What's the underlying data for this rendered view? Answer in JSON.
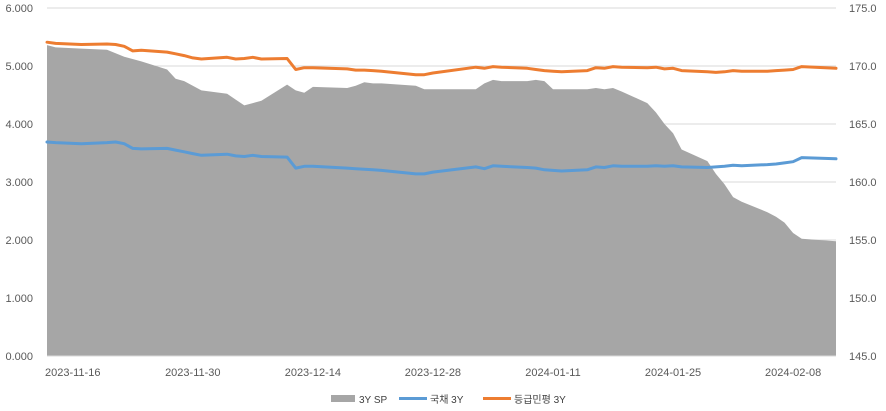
{
  "chart_data": {
    "type": "area+line",
    "title": "",
    "categories": [
      "2023-11-16",
      "2023-11-30",
      "2023-12-14",
      "2023-12-28",
      "2024-01-11",
      "2024-01-25",
      "2024-02-08"
    ],
    "x_tick_labels": [
      "2023-11-16",
      "2023-11-30",
      "2023-12-14",
      "2023-12-28",
      "2024-01-11",
      "2024-01-25",
      "2024-02-08"
    ],
    "x_range": [
      "2023-11-13",
      "2024-02-13"
    ],
    "y_left": {
      "ticks": [
        "0.000",
        "1.000",
        "2.000",
        "3.000",
        "4.000",
        "5.000",
        "6.000"
      ],
      "range": [
        0,
        6
      ]
    },
    "y_right": {
      "ticks": [
        "145.0",
        "150.0",
        "155.0",
        "160.0",
        "165.0",
        "170.0",
        "175.0"
      ],
      "range": [
        145,
        175
      ]
    },
    "grid": "horizontal",
    "legend_placement": "bottom",
    "series": [
      {
        "name": "3Y SP",
        "kind": "area",
        "axis": "right",
        "color": "#A6A6A6",
        "points": [
          [
            "2023-11-13",
            171.8
          ],
          [
            "2023-11-14",
            171.6
          ],
          [
            "2023-11-17",
            171.5
          ],
          [
            "2023-11-20",
            171.4
          ],
          [
            "2023-11-22",
            170.8
          ],
          [
            "2023-11-24",
            170.4
          ],
          [
            "2023-11-27",
            169.7
          ],
          [
            "2023-11-28",
            168.9
          ],
          [
            "2023-11-29",
            168.7
          ],
          [
            "2023-11-30",
            168.3
          ],
          [
            "2023-12-01",
            167.9
          ],
          [
            "2023-12-04",
            167.6
          ],
          [
            "2023-12-05",
            167.1
          ],
          [
            "2023-12-06",
            166.6
          ],
          [
            "2023-12-07",
            166.8
          ],
          [
            "2023-12-08",
            167.0
          ],
          [
            "2023-12-11",
            168.4
          ],
          [
            "2023-12-12",
            167.9
          ],
          [
            "2023-12-13",
            167.7
          ],
          [
            "2023-12-14",
            168.2
          ],
          [
            "2023-12-18",
            168.1
          ],
          [
            "2023-12-19",
            168.3
          ],
          [
            "2023-12-20",
            168.6
          ],
          [
            "2023-12-21",
            168.5
          ],
          [
            "2023-12-22",
            168.5
          ],
          [
            "2023-12-26",
            168.3
          ],
          [
            "2023-12-27",
            168.0
          ],
          [
            "2023-12-28",
            168.0
          ],
          [
            "2024-01-02",
            168.0
          ],
          [
            "2024-01-03",
            168.5
          ],
          [
            "2024-01-04",
            168.8
          ],
          [
            "2024-01-05",
            168.7
          ],
          [
            "2024-01-08",
            168.7
          ],
          [
            "2024-01-09",
            168.8
          ],
          [
            "2024-01-10",
            168.7
          ],
          [
            "2024-01-11",
            168.0
          ],
          [
            "2024-01-15",
            168.0
          ],
          [
            "2024-01-16",
            168.1
          ],
          [
            "2024-01-17",
            168.0
          ],
          [
            "2024-01-18",
            168.1
          ],
          [
            "2024-01-19",
            167.8
          ],
          [
            "2024-01-22",
            166.8
          ],
          [
            "2024-01-23",
            166.0
          ],
          [
            "2024-01-24",
            165.0
          ],
          [
            "2024-01-25",
            164.2
          ],
          [
            "2024-01-26",
            162.8
          ],
          [
            "2024-01-29",
            161.8
          ],
          [
            "2024-01-30",
            160.7
          ],
          [
            "2024-01-31",
            159.8
          ],
          [
            "2024-02-01",
            158.7
          ],
          [
            "2024-02-02",
            158.3
          ],
          [
            "2024-02-05",
            157.4
          ],
          [
            "2024-02-06",
            157.0
          ],
          [
            "2024-02-07",
            156.5
          ],
          [
            "2024-02-08",
            155.6
          ],
          [
            "2024-02-09",
            155.1
          ],
          [
            "2024-02-13",
            154.9
          ]
        ]
      },
      {
        "name": "국채 3Y",
        "kind": "line",
        "axis": "left",
        "color": "#5B9BD5",
        "points": [
          [
            "2023-11-13",
            3.69
          ],
          [
            "2023-11-14",
            3.68
          ],
          [
            "2023-11-17",
            3.66
          ],
          [
            "2023-11-20",
            3.68
          ],
          [
            "2023-11-21",
            3.69
          ],
          [
            "2023-11-22",
            3.66
          ],
          [
            "2023-11-23",
            3.58
          ],
          [
            "2023-11-24",
            3.57
          ],
          [
            "2023-11-27",
            3.58
          ],
          [
            "2023-11-28",
            3.55
          ],
          [
            "2023-11-29",
            3.52
          ],
          [
            "2023-11-30",
            3.49
          ],
          [
            "2023-12-01",
            3.46
          ],
          [
            "2023-12-04",
            3.48
          ],
          [
            "2023-12-05",
            3.45
          ],
          [
            "2023-12-06",
            3.44
          ],
          [
            "2023-12-07",
            3.46
          ],
          [
            "2023-12-08",
            3.44
          ],
          [
            "2023-12-11",
            3.43
          ],
          [
            "2023-12-12",
            3.24
          ],
          [
            "2023-12-13",
            3.27
          ],
          [
            "2023-12-14",
            3.27
          ],
          [
            "2023-12-18",
            3.24
          ],
          [
            "2023-12-19",
            3.23
          ],
          [
            "2023-12-20",
            3.22
          ],
          [
            "2023-12-21",
            3.21
          ],
          [
            "2023-12-22",
            3.2
          ],
          [
            "2023-12-26",
            3.14
          ],
          [
            "2023-12-27",
            3.14
          ],
          [
            "2023-12-28",
            3.17
          ],
          [
            "2024-01-02",
            3.26
          ],
          [
            "2024-01-03",
            3.23
          ],
          [
            "2024-01-04",
            3.28
          ],
          [
            "2024-01-05",
            3.27
          ],
          [
            "2024-01-08",
            3.25
          ],
          [
            "2024-01-09",
            3.24
          ],
          [
            "2024-01-10",
            3.21
          ],
          [
            "2024-01-11",
            3.2
          ],
          [
            "2024-01-12",
            3.19
          ],
          [
            "2024-01-15",
            3.21
          ],
          [
            "2024-01-16",
            3.26
          ],
          [
            "2024-01-17",
            3.25
          ],
          [
            "2024-01-18",
            3.28
          ],
          [
            "2024-01-19",
            3.27
          ],
          [
            "2024-01-22",
            3.27
          ],
          [
            "2024-01-23",
            3.28
          ],
          [
            "2024-01-24",
            3.27
          ],
          [
            "2024-01-25",
            3.28
          ],
          [
            "2024-01-26",
            3.26
          ],
          [
            "2024-01-29",
            3.25
          ],
          [
            "2024-01-30",
            3.26
          ],
          [
            "2024-01-31",
            3.27
          ],
          [
            "2024-02-01",
            3.29
          ],
          [
            "2024-02-02",
            3.28
          ],
          [
            "2024-02-05",
            3.3
          ],
          [
            "2024-02-06",
            3.31
          ],
          [
            "2024-02-07",
            3.33
          ],
          [
            "2024-02-08",
            3.35
          ],
          [
            "2024-02-09",
            3.42
          ],
          [
            "2024-02-13",
            3.4
          ]
        ]
      },
      {
        "name": "등급민평 3Y",
        "kind": "line",
        "axis": "left",
        "color": "#ED7D31",
        "points": [
          [
            "2023-11-13",
            5.41
          ],
          [
            "2023-11-14",
            5.39
          ],
          [
            "2023-11-17",
            5.37
          ],
          [
            "2023-11-20",
            5.38
          ],
          [
            "2023-11-21",
            5.37
          ],
          [
            "2023-11-22",
            5.34
          ],
          [
            "2023-11-23",
            5.26
          ],
          [
            "2023-11-24",
            5.27
          ],
          [
            "2023-11-27",
            5.24
          ],
          [
            "2023-11-28",
            5.21
          ],
          [
            "2023-11-29",
            5.18
          ],
          [
            "2023-11-30",
            5.14
          ],
          [
            "2023-12-01",
            5.12
          ],
          [
            "2023-12-04",
            5.15
          ],
          [
            "2023-12-05",
            5.12
          ],
          [
            "2023-12-06",
            5.13
          ],
          [
            "2023-12-07",
            5.15
          ],
          [
            "2023-12-08",
            5.12
          ],
          [
            "2023-12-11",
            5.13
          ],
          [
            "2023-12-12",
            4.94
          ],
          [
            "2023-12-13",
            4.97
          ],
          [
            "2023-12-14",
            4.97
          ],
          [
            "2023-12-18",
            4.95
          ],
          [
            "2023-12-19",
            4.93
          ],
          [
            "2023-12-20",
            4.93
          ],
          [
            "2023-12-21",
            4.92
          ],
          [
            "2023-12-22",
            4.91
          ],
          [
            "2023-12-26",
            4.85
          ],
          [
            "2023-12-27",
            4.85
          ],
          [
            "2023-12-28",
            4.88
          ],
          [
            "2024-01-02",
            4.98
          ],
          [
            "2024-01-03",
            4.96
          ],
          [
            "2024-01-04",
            4.99
          ],
          [
            "2024-01-05",
            4.98
          ],
          [
            "2024-01-08",
            4.96
          ],
          [
            "2024-01-09",
            4.94
          ],
          [
            "2024-01-10",
            4.92
          ],
          [
            "2024-01-11",
            4.91
          ],
          [
            "2024-01-12",
            4.9
          ],
          [
            "2024-01-15",
            4.92
          ],
          [
            "2024-01-16",
            4.97
          ],
          [
            "2024-01-17",
            4.96
          ],
          [
            "2024-01-18",
            4.99
          ],
          [
            "2024-01-19",
            4.98
          ],
          [
            "2024-01-22",
            4.97
          ],
          [
            "2024-01-23",
            4.98
          ],
          [
            "2024-01-24",
            4.95
          ],
          [
            "2024-01-25",
            4.96
          ],
          [
            "2024-01-26",
            4.92
          ],
          [
            "2024-01-29",
            4.9
          ],
          [
            "2024-01-30",
            4.89
          ],
          [
            "2024-01-31",
            4.9
          ],
          [
            "2024-02-01",
            4.92
          ],
          [
            "2024-02-02",
            4.91
          ],
          [
            "2024-02-05",
            4.91
          ],
          [
            "2024-02-06",
            4.92
          ],
          [
            "2024-02-07",
            4.93
          ],
          [
            "2024-02-08",
            4.94
          ],
          [
            "2024-02-09",
            4.99
          ],
          [
            "2024-02-13",
            4.96
          ]
        ]
      }
    ]
  }
}
